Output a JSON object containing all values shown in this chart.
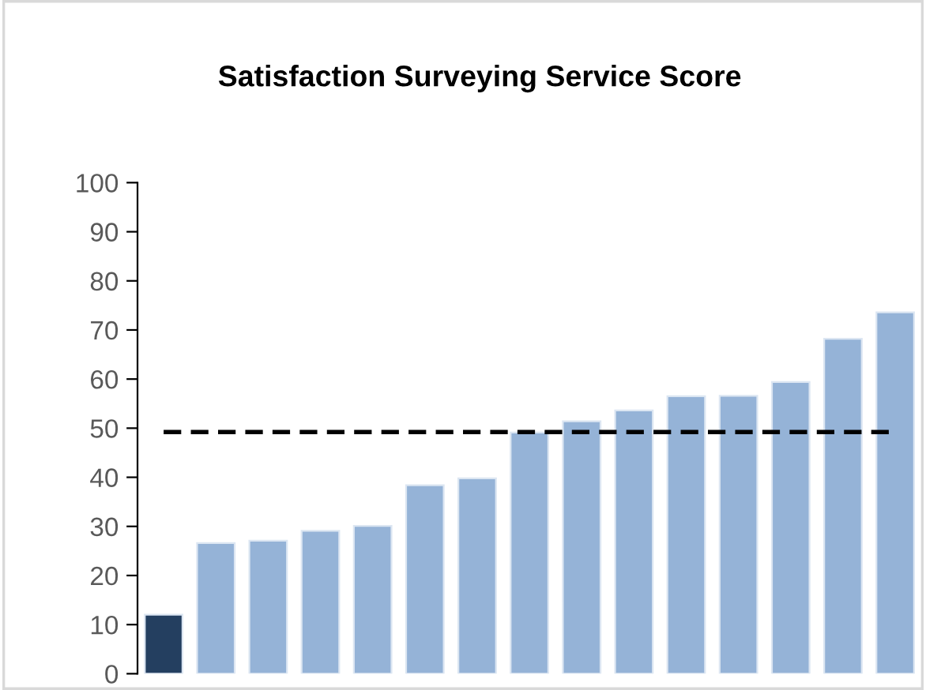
{
  "chart_data": {
    "type": "bar",
    "title": "Satisfaction Surveying Service Score",
    "categories": [
      null,
      null,
      null,
      null,
      null,
      null,
      null,
      null,
      null,
      null,
      null,
      null,
      null,
      null,
      null
    ],
    "values": [
      12,
      26.6,
      27.1,
      29.1,
      30.1,
      38.4,
      39.8,
      49.1,
      51.4,
      53.6,
      56.5,
      56.6,
      59.4,
      68.2,
      73.6
    ],
    "colors": [
      "#243f60",
      "#95b3d7",
      "#95b3d7",
      "#95b3d7",
      "#95b3d7",
      "#95b3d7",
      "#95b3d7",
      "#95b3d7",
      "#95b3d7",
      "#95b3d7",
      "#95b3d7",
      "#95b3d7",
      "#95b3d7",
      "#95b3d7",
      "#95b3d7"
    ],
    "ylim": [
      0,
      100
    ],
    "yticks": [
      0,
      10,
      20,
      30,
      40,
      50,
      60,
      70,
      80,
      90,
      100
    ],
    "grid": false,
    "tick_labels": "y",
    "ref_lines": [
      {
        "axis": "y",
        "value": 49.2,
        "color": "#000000",
        "line_style": "dashed"
      }
    ]
  }
}
